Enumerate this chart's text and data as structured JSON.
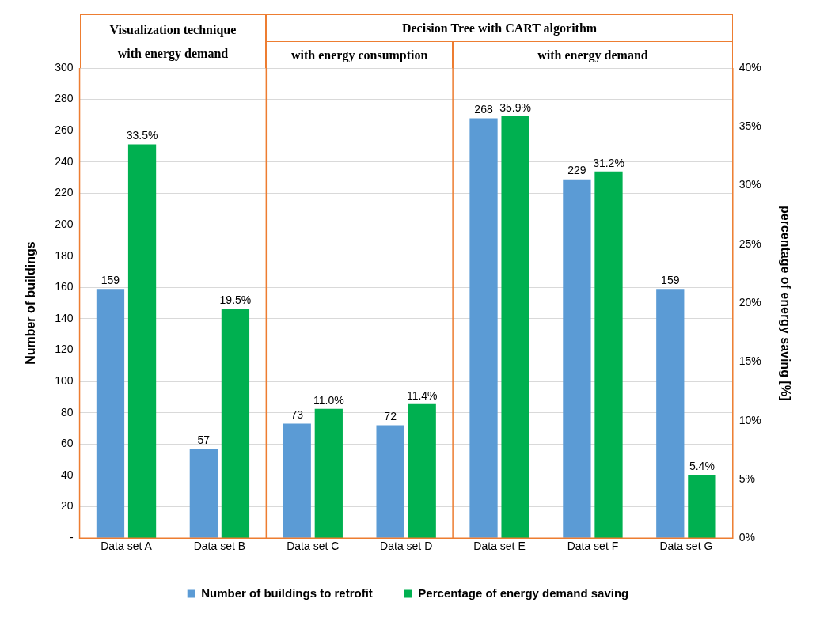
{
  "chart_data": {
    "type": "bar",
    "categories": [
      "Data set A",
      "Data set B",
      "Data set C",
      "Data set D",
      "Data set E",
      "Data set F",
      "Data set G"
    ],
    "series": [
      {
        "name": "Number of buildings to retrofit",
        "color": "#5b9bd5",
        "values": [
          159,
          57,
          73,
          72,
          268,
          229,
          159
        ],
        "value_labels": [
          "159",
          "57",
          "73",
          "72",
          "268",
          "229",
          "159"
        ]
      },
      {
        "name": "Percentage of energy demand saving",
        "color": "#00b050",
        "axis": "y2",
        "values": [
          33.5,
          19.5,
          11.0,
          11.4,
          35.9,
          31.2,
          5.4
        ],
        "value_labels": [
          "33.5%",
          "19.5%",
          "11.0%",
          "11.4%",
          "35.9%",
          "31.2%",
          "5.4%"
        ]
      }
    ],
    "ylabel": "Number of buildings",
    "y2label": "percentage of energy saving [%]",
    "ylim": [
      0,
      300
    ],
    "yticks": [
      {
        "value": 0,
        "label": "-"
      },
      20,
      40,
      60,
      80,
      100,
      120,
      140,
      160,
      180,
      200,
      220,
      240,
      260,
      280,
      300
    ],
    "y2lim": [
      0,
      40
    ],
    "y2ticks": [
      {
        "value": 0,
        "label": "0%"
      },
      {
        "value": 5,
        "label": "5%"
      },
      {
        "value": 10,
        "label": "10%"
      },
      {
        "value": 15,
        "label": "15%"
      },
      {
        "value": 20,
        "label": "20%"
      },
      {
        "value": 25,
        "label": "25%"
      },
      {
        "value": 30,
        "label": "30%"
      },
      {
        "value": 35,
        "label": "35%"
      },
      {
        "value": 40,
        "label": "40%"
      }
    ],
    "annotations": [
      "Visualization technique with energy demand",
      "Decision Tree with CART algorithm",
      "with energy consumption",
      "with energy demand"
    ],
    "grid": "y",
    "legend": "bottom"
  }
}
